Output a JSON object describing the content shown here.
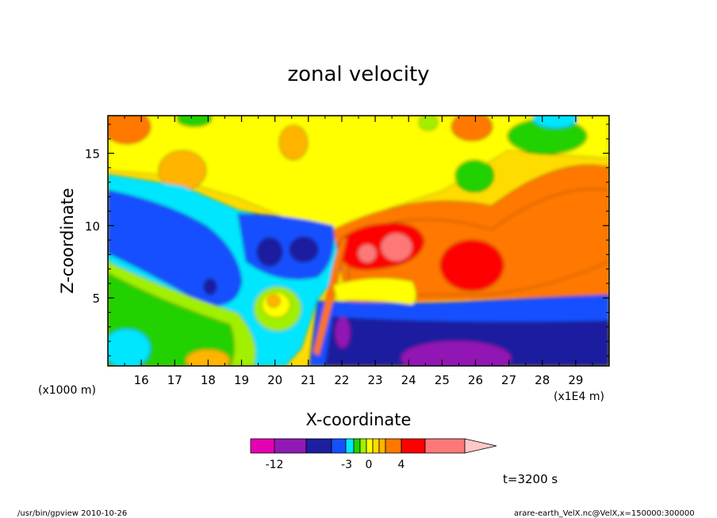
{
  "chart_data": {
    "type": "heatmap",
    "title": "zonal velocity",
    "xlabel": "X-coordinate",
    "ylabel": "Z-coordinate",
    "x_unit_label": "(x1E4 m)",
    "y_unit_label": "(x1000 m)",
    "xlim": [
      15.0,
      30.0
    ],
    "ylim": [
      0.3,
      17.6
    ],
    "x_ticks": [
      "16",
      "17",
      "18",
      "19",
      "20",
      "21",
      "22",
      "23",
      "24",
      "25",
      "26",
      "27",
      "28",
      "29"
    ],
    "y_ticks": [
      "5",
      "10",
      "15"
    ],
    "colorbar": {
      "colors": [
        "#e600b4",
        "#9119b4",
        "#1e1ea0",
        "#1450ff",
        "#00e6ff",
        "#20d200",
        "#a0f000",
        "#ffff00",
        "#ffdc00",
        "#ffb400",
        "#ff7800",
        "#ff0000",
        "#ff7878",
        "#ffc8c8"
      ],
      "labels": [
        "-12",
        "-3",
        "0",
        "4"
      ]
    },
    "time_label": "t=3200 s",
    "footer_left": "/usr/bin/gpview   2010-10-26",
    "footer_right": "arare-earth_VelX.nc@VelX,x=150000:300000"
  }
}
